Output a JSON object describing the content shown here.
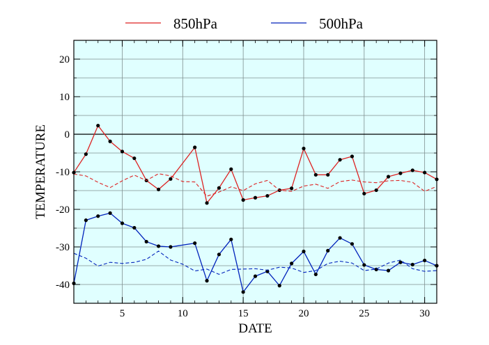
{
  "chart_data": {
    "type": "line",
    "xlabel": "DATE",
    "ylabel": "TEMPERATURE",
    "xlim": [
      1,
      31
    ],
    "ylim": [
      -45,
      25
    ],
    "xticks": [
      5,
      10,
      15,
      20,
      25,
      30
    ],
    "yticks": [
      20,
      10,
      0,
      -10,
      -20,
      -30,
      -40
    ],
    "x_minor_step": 1,
    "y_minor_step": 5,
    "grid": true,
    "zero_line": true,
    "legend": "top",
    "background_color": "#e0ffff",
    "series": [
      {
        "name": "850hPa",
        "color": "#dd2222",
        "style": "solid",
        "markers": true,
        "points": [
          [
            1,
            -10.2
          ],
          [
            2,
            -5.3
          ],
          [
            3,
            2.3
          ],
          [
            4,
            -1.9
          ],
          [
            5,
            -4.6
          ],
          [
            6,
            -6.4
          ],
          [
            7,
            -12.3
          ],
          [
            8,
            -14.7
          ],
          [
            9,
            -11.9
          ],
          [
            11,
            -3.5
          ],
          [
            12,
            -18.3
          ],
          [
            13,
            -14.3
          ],
          [
            14,
            -9.3
          ],
          [
            15,
            -17.5
          ],
          [
            16,
            -16.9
          ],
          [
            17,
            -16.4
          ],
          [
            18,
            -14.9
          ],
          [
            19,
            -14.4
          ],
          [
            20,
            -3.8
          ],
          [
            21,
            -10.8
          ],
          [
            22,
            -10.8
          ],
          [
            23,
            -6.8
          ],
          [
            24,
            -5.9
          ],
          [
            25,
            -15.8
          ],
          [
            26,
            -14.9
          ],
          [
            27,
            -11.3
          ],
          [
            28,
            -10.4
          ],
          [
            29,
            -9.6
          ],
          [
            30,
            -10.2
          ],
          [
            31,
            -12.0
          ]
        ]
      },
      {
        "name": "",
        "color": "#dd2222",
        "style": "dashed",
        "markers": false,
        "points": [
          [
            1,
            -10.6
          ],
          [
            2,
            -11.1
          ],
          [
            3,
            -12.8
          ],
          [
            4,
            -14.2
          ],
          [
            5,
            -12.4
          ],
          [
            6,
            -10.9
          ],
          [
            7,
            -12.3
          ],
          [
            8,
            -10.5
          ],
          [
            9,
            -11.1
          ],
          [
            10,
            -12.6
          ],
          [
            11,
            -12.7
          ],
          [
            12,
            -16.5
          ],
          [
            13,
            -15.4
          ],
          [
            14,
            -14.0
          ],
          [
            15,
            -15.0
          ],
          [
            16,
            -13.2
          ],
          [
            17,
            -12.3
          ],
          [
            18,
            -14.9
          ],
          [
            19,
            -15.2
          ],
          [
            20,
            -13.8
          ],
          [
            21,
            -13.3
          ],
          [
            22,
            -14.4
          ],
          [
            23,
            -12.6
          ],
          [
            24,
            -12.2
          ],
          [
            25,
            -12.7
          ],
          [
            26,
            -12.9
          ],
          [
            27,
            -12.4
          ],
          [
            28,
            -12.3
          ],
          [
            29,
            -12.8
          ],
          [
            30,
            -15.2
          ],
          [
            31,
            -13.9
          ]
        ]
      },
      {
        "name": "500hPa",
        "color": "#0022bb",
        "style": "solid",
        "markers": true,
        "points": [
          [
            1,
            -39.7
          ],
          [
            2,
            -22.9
          ],
          [
            3,
            -21.8
          ],
          [
            4,
            -21.0
          ],
          [
            5,
            -23.7
          ],
          [
            6,
            -24.9
          ],
          [
            7,
            -28.6
          ],
          [
            8,
            -29.8
          ],
          [
            9,
            -30.0
          ],
          [
            11,
            -29.0
          ],
          [
            12,
            -39.0
          ],
          [
            13,
            -32.0
          ],
          [
            14,
            -28.0
          ],
          [
            15,
            -42.0
          ],
          [
            16,
            -37.8
          ],
          [
            17,
            -36.5
          ],
          [
            18,
            -40.3
          ],
          [
            19,
            -34.4
          ],
          [
            20,
            -31.2
          ],
          [
            21,
            -37.3
          ],
          [
            22,
            -31.0
          ],
          [
            23,
            -27.6
          ],
          [
            24,
            -29.2
          ],
          [
            25,
            -34.8
          ],
          [
            26,
            -36.0
          ],
          [
            27,
            -36.3
          ],
          [
            28,
            -34.1
          ],
          [
            29,
            -34.7
          ],
          [
            30,
            -33.6
          ],
          [
            31,
            -35.0
          ]
        ]
      },
      {
        "name": "",
        "color": "#0022bb",
        "style": "dashed",
        "markers": false,
        "points": [
          [
            1,
            -31.7
          ],
          [
            2,
            -33.0
          ],
          [
            3,
            -35.1
          ],
          [
            4,
            -34.1
          ],
          [
            5,
            -34.4
          ],
          [
            6,
            -34.1
          ],
          [
            7,
            -33.3
          ],
          [
            8,
            -31.1
          ],
          [
            9,
            -33.5
          ],
          [
            10,
            -34.6
          ],
          [
            11,
            -36.4
          ],
          [
            12,
            -35.9
          ],
          [
            13,
            -37.3
          ],
          [
            14,
            -36.0
          ],
          [
            15,
            -35.9
          ],
          [
            16,
            -35.8
          ],
          [
            17,
            -36.2
          ],
          [
            18,
            -35.4
          ],
          [
            19,
            -35.6
          ],
          [
            20,
            -36.8
          ],
          [
            21,
            -36.3
          ],
          [
            22,
            -34.4
          ],
          [
            23,
            -33.8
          ],
          [
            24,
            -34.3
          ],
          [
            25,
            -36.3
          ],
          [
            26,
            -35.9
          ],
          [
            27,
            -34.3
          ],
          [
            28,
            -33.5
          ],
          [
            29,
            -35.8
          ],
          [
            30,
            -36.5
          ],
          [
            31,
            -36.3
          ]
        ]
      }
    ]
  }
}
